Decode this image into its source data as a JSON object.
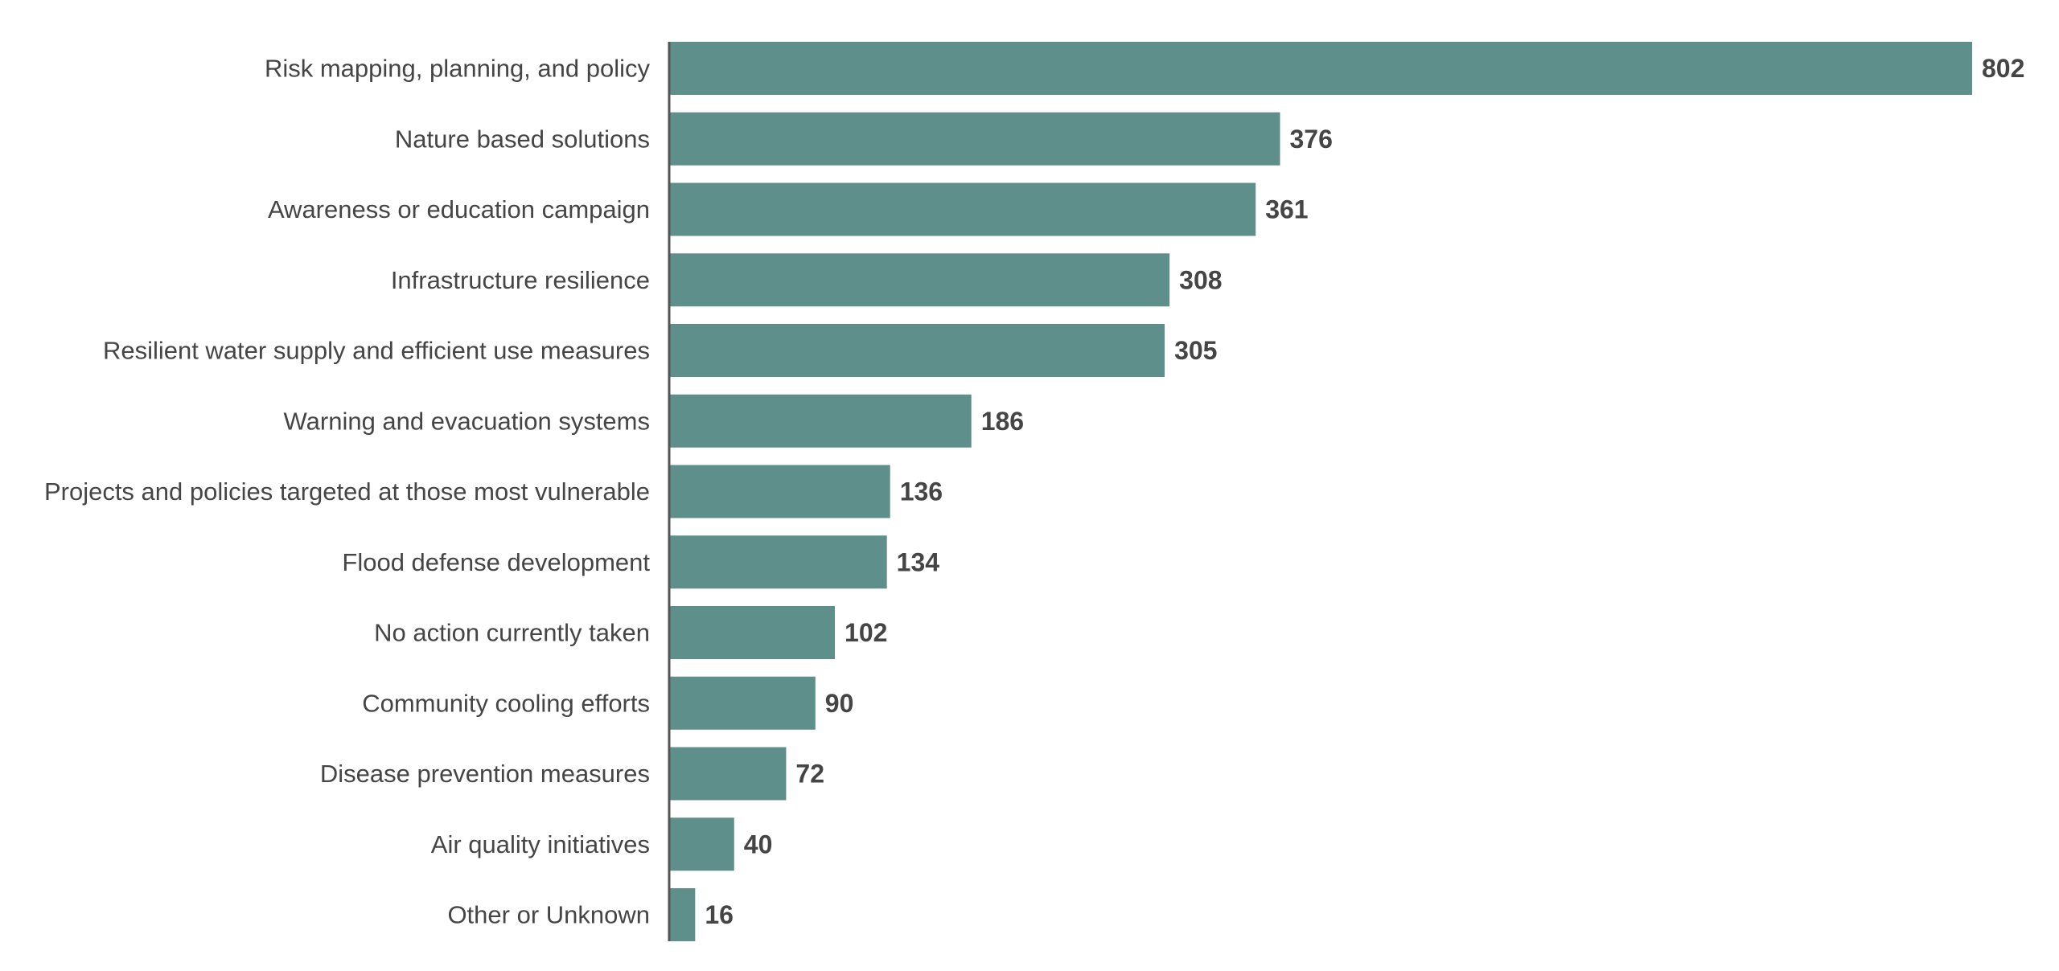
{
  "chart_data": {
    "type": "bar",
    "orientation": "horizontal",
    "categories": [
      "Risk mapping, planning, and policy",
      "Nature based solutions",
      "Awareness or education campaign",
      "Infrastructure resilience",
      "Resilient water supply and efficient use measures",
      "Warning and evacuation systems",
      "Projects and policies targeted at those most vulnerable",
      "Flood defense development",
      "No action currently taken",
      "Community cooling efforts",
      "Disease prevention measures",
      "Air quality initiatives",
      "Other or Unknown"
    ],
    "values": [
      802,
      376,
      361,
      308,
      305,
      186,
      136,
      134,
      102,
      90,
      72,
      40,
      16
    ],
    "value_labels": [
      "802",
      "376",
      "361",
      "308",
      "305",
      "186",
      "136",
      "134",
      "102",
      "90",
      "72",
      "40",
      "16"
    ],
    "xlim": [
      0,
      802
    ],
    "grid": false,
    "legend": "none",
    "bar_color": "#5e8f8b",
    "axis_color": "#555555",
    "text_color": "#454545"
  }
}
